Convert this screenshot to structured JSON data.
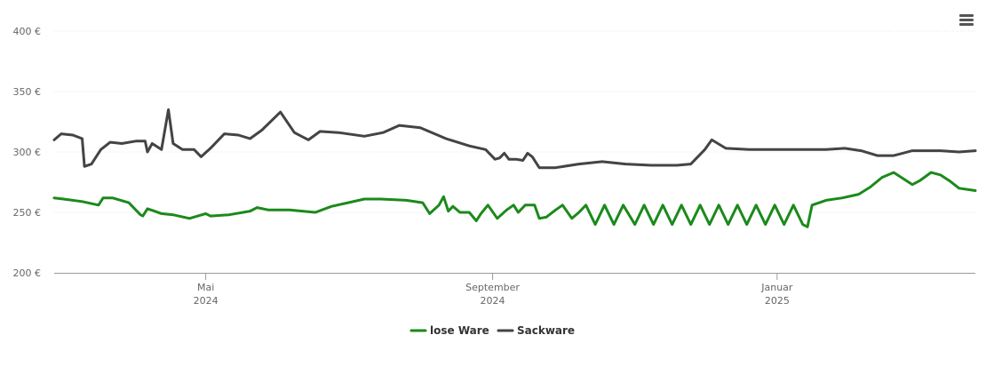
{
  "chart_data": {
    "type": "line",
    "x_axis_type": "date",
    "xlim": [
      "2024-02-26",
      "2025-03-27"
    ],
    "ylim": [
      200,
      400
    ],
    "yticks": [
      200,
      250,
      300,
      350,
      400
    ],
    "ytick_format": "{v} €",
    "xticks": [
      {
        "date": "2024-05-01",
        "month": "Mai",
        "year": "2024"
      },
      {
        "date": "2024-09-01",
        "month": "September",
        "year": "2024"
      },
      {
        "date": "2025-01-01",
        "month": "Januar",
        "year": "2025"
      }
    ],
    "grid": true,
    "legend_position": "bottom",
    "series": [
      {
        "name": "lose Ware",
        "color": "#1b8a1b",
        "points": [
          [
            "2024-02-26",
            262
          ],
          [
            "2024-03-01",
            261
          ],
          [
            "2024-03-09",
            259
          ],
          [
            "2024-03-16",
            256
          ],
          [
            "2024-03-18",
            262
          ],
          [
            "2024-03-22",
            262
          ],
          [
            "2024-03-29",
            258
          ],
          [
            "2024-04-03",
            248
          ],
          [
            "2024-04-04",
            247
          ],
          [
            "2024-04-06",
            253
          ],
          [
            "2024-04-09",
            251
          ],
          [
            "2024-04-12",
            249
          ],
          [
            "2024-04-17",
            248
          ],
          [
            "2024-04-24",
            245
          ],
          [
            "2024-05-01",
            249
          ],
          [
            "2024-05-03",
            247
          ],
          [
            "2024-05-11",
            248
          ],
          [
            "2024-05-20",
            251
          ],
          [
            "2024-05-23",
            254
          ],
          [
            "2024-05-28",
            252
          ],
          [
            "2024-06-06",
            252
          ],
          [
            "2024-06-17",
            250
          ],
          [
            "2024-06-24",
            255
          ],
          [
            "2024-07-01",
            258
          ],
          [
            "2024-07-08",
            261
          ],
          [
            "2024-07-15",
            261
          ],
          [
            "2024-07-26",
            260
          ],
          [
            "2024-08-02",
            258
          ],
          [
            "2024-08-05",
            249
          ],
          [
            "2024-08-09",
            256
          ],
          [
            "2024-08-11",
            263
          ],
          [
            "2024-08-13",
            251
          ],
          [
            "2024-08-15",
            255
          ],
          [
            "2024-08-18",
            250
          ],
          [
            "2024-08-22",
            250
          ],
          [
            "2024-08-25",
            243
          ],
          [
            "2024-08-27",
            249
          ],
          [
            "2024-08-30",
            256
          ],
          [
            "2024-09-03",
            245
          ],
          [
            "2024-09-07",
            252
          ],
          [
            "2024-09-10",
            256
          ],
          [
            "2024-09-12",
            250
          ],
          [
            "2024-09-15",
            256
          ],
          [
            "2024-09-19",
            256
          ],
          [
            "2024-09-21",
            245
          ],
          [
            "2024-09-24",
            246
          ],
          [
            "2024-09-28",
            252
          ],
          [
            "2024-10-01",
            256
          ],
          [
            "2024-10-05",
            245
          ],
          [
            "2024-10-08",
            250
          ],
          [
            "2024-10-11",
            256
          ],
          [
            "2024-10-15",
            240
          ],
          [
            "2024-10-19",
            256
          ],
          [
            "2024-10-23",
            240
          ],
          [
            "2024-10-27",
            256
          ],
          [
            "2024-11-01",
            240
          ],
          [
            "2024-11-05",
            256
          ],
          [
            "2024-11-09",
            240
          ],
          [
            "2024-11-13",
            256
          ],
          [
            "2024-11-17",
            240
          ],
          [
            "2024-11-21",
            256
          ],
          [
            "2024-11-25",
            240
          ],
          [
            "2024-11-29",
            256
          ],
          [
            "2024-12-03",
            240
          ],
          [
            "2024-12-07",
            256
          ],
          [
            "2024-12-11",
            240
          ],
          [
            "2024-12-15",
            256
          ],
          [
            "2024-12-19",
            240
          ],
          [
            "2024-12-23",
            256
          ],
          [
            "2024-12-27",
            240
          ],
          [
            "2024-12-31",
            256
          ],
          [
            "2025-01-04",
            240
          ],
          [
            "2025-01-08",
            256
          ],
          [
            "2025-01-12",
            240
          ],
          [
            "2025-01-14",
            238
          ],
          [
            "2025-01-16",
            256
          ],
          [
            "2025-01-22",
            260
          ],
          [
            "2025-01-29",
            262
          ],
          [
            "2025-02-05",
            265
          ],
          [
            "2025-02-10",
            271
          ],
          [
            "2025-02-15",
            279
          ],
          [
            "2025-02-20",
            283
          ],
          [
            "2025-02-24",
            278
          ],
          [
            "2025-02-28",
            273
          ],
          [
            "2025-03-03",
            276
          ],
          [
            "2025-03-08",
            283
          ],
          [
            "2025-03-12",
            281
          ],
          [
            "2025-03-16",
            276
          ],
          [
            "2025-03-20",
            270
          ],
          [
            "2025-03-27",
            268
          ]
        ]
      },
      {
        "name": "Sackware",
        "color": "#444444",
        "points": [
          [
            "2024-02-26",
            310
          ],
          [
            "2024-02-29",
            315
          ],
          [
            "2024-03-05",
            314
          ],
          [
            "2024-03-09",
            311
          ],
          [
            "2024-03-10",
            288
          ],
          [
            "2024-03-13",
            290
          ],
          [
            "2024-03-17",
            302
          ],
          [
            "2024-03-21",
            308
          ],
          [
            "2024-03-26",
            307
          ],
          [
            "2024-04-01",
            309
          ],
          [
            "2024-04-05",
            309
          ],
          [
            "2024-04-06",
            300
          ],
          [
            "2024-04-08",
            307
          ],
          [
            "2024-04-12",
            302
          ],
          [
            "2024-04-15",
            335
          ],
          [
            "2024-04-17",
            307
          ],
          [
            "2024-04-21",
            302
          ],
          [
            "2024-04-26",
            302
          ],
          [
            "2024-04-29",
            296
          ],
          [
            "2024-05-03",
            303
          ],
          [
            "2024-05-09",
            315
          ],
          [
            "2024-05-15",
            314
          ],
          [
            "2024-05-20",
            311
          ],
          [
            "2024-05-25",
            318
          ],
          [
            "2024-06-02",
            333
          ],
          [
            "2024-06-08",
            316
          ],
          [
            "2024-06-14",
            310
          ],
          [
            "2024-06-19",
            317
          ],
          [
            "2024-06-27",
            316
          ],
          [
            "2024-07-08",
            313
          ],
          [
            "2024-07-16",
            316
          ],
          [
            "2024-07-23",
            322
          ],
          [
            "2024-08-01",
            320
          ],
          [
            "2024-08-12",
            311
          ],
          [
            "2024-08-22",
            305
          ],
          [
            "2024-08-29",
            302
          ],
          [
            "2024-08-31",
            298
          ],
          [
            "2024-09-02",
            294
          ],
          [
            "2024-09-04",
            295
          ],
          [
            "2024-09-06",
            299
          ],
          [
            "2024-09-08",
            294
          ],
          [
            "2024-09-11",
            294
          ],
          [
            "2024-09-14",
            293
          ],
          [
            "2024-09-16",
            299
          ],
          [
            "2024-09-18",
            296
          ],
          [
            "2024-09-21",
            287
          ],
          [
            "2024-09-28",
            287
          ],
          [
            "2024-10-08",
            290
          ],
          [
            "2024-10-18",
            292
          ],
          [
            "2024-10-28",
            290
          ],
          [
            "2024-11-08",
            289
          ],
          [
            "2024-11-19",
            289
          ],
          [
            "2024-11-25",
            290
          ],
          [
            "2024-12-01",
            302
          ],
          [
            "2024-12-04",
            310
          ],
          [
            "2024-12-10",
            303
          ],
          [
            "2024-12-20",
            302
          ],
          [
            "2025-01-01",
            302
          ],
          [
            "2025-01-12",
            302
          ],
          [
            "2025-01-22",
            302
          ],
          [
            "2025-01-30",
            303
          ],
          [
            "2025-02-06",
            301
          ],
          [
            "2025-02-13",
            297
          ],
          [
            "2025-02-20",
            297
          ],
          [
            "2025-02-28",
            301
          ],
          [
            "2025-03-12",
            301
          ],
          [
            "2025-03-20",
            300
          ],
          [
            "2025-03-27",
            301
          ]
        ]
      }
    ]
  },
  "legend": {
    "items": [
      {
        "label": "lose Ware",
        "color": "#1b8a1b"
      },
      {
        "label": "Sackware",
        "color": "#444444"
      }
    ]
  },
  "menu": {
    "icon": "hamburger-menu-icon"
  }
}
